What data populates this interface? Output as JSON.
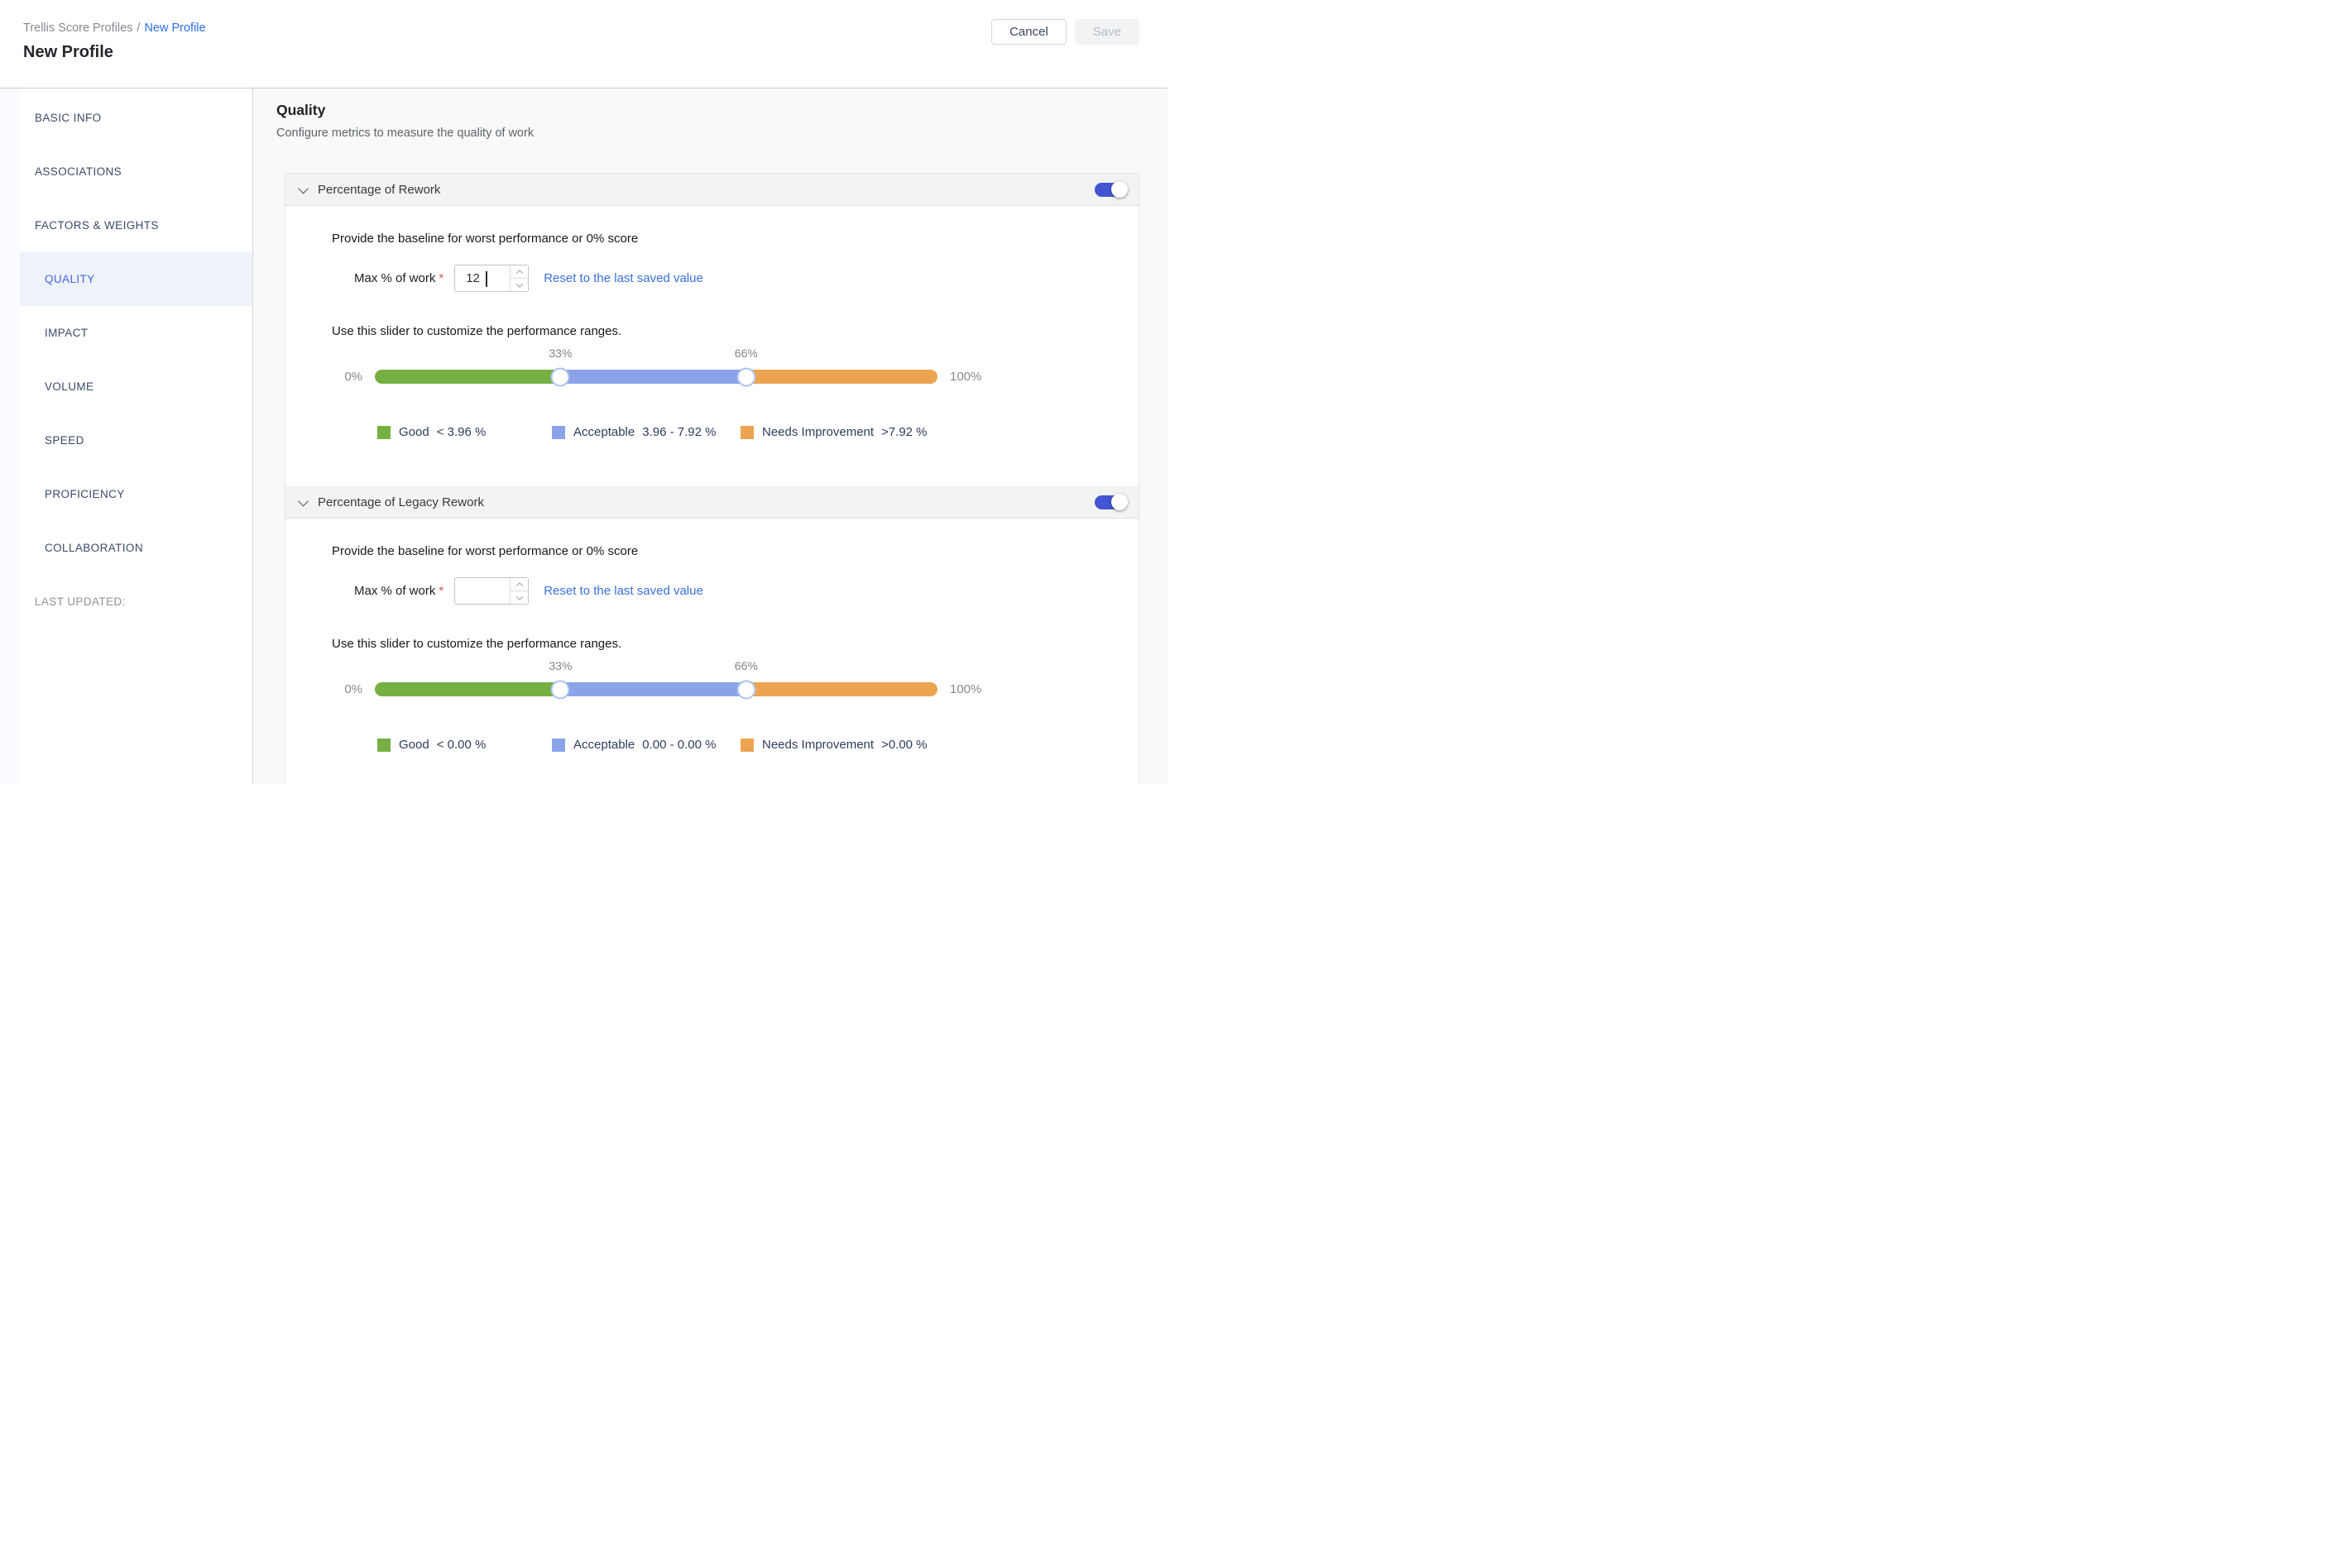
{
  "page": {
    "breadcrumb": {
      "root": "Trellis Score Profiles",
      "separator": "/",
      "current": "New Profile"
    },
    "title": "New Profile",
    "actions": {
      "cancel": "Cancel",
      "save": "Save"
    }
  },
  "sidebar": {
    "items": [
      {
        "label": "BASIC INFO",
        "level": 0,
        "active": false
      },
      {
        "label": "ASSOCIATIONS",
        "level": 0,
        "active": false
      },
      {
        "label": "FACTORS & WEIGHTS",
        "level": 0,
        "active": false
      },
      {
        "label": "QUALITY",
        "level": 1,
        "active": true
      },
      {
        "label": "IMPACT",
        "level": 1,
        "active": false
      },
      {
        "label": "VOLUME",
        "level": 1,
        "active": false
      },
      {
        "label": "SPEED",
        "level": 1,
        "active": false
      },
      {
        "label": "PROFICIENCY",
        "level": 1,
        "active": false
      },
      {
        "label": "COLLABORATION",
        "level": 1,
        "active": false
      }
    ],
    "footer_label": "LAST UPDATED:"
  },
  "main": {
    "heading": "Quality",
    "subheading": "Configure metrics to measure the quality of work",
    "sections": [
      {
        "title": "Percentage of Rework",
        "enabled": true,
        "baseline_text": "Provide the baseline for worst performance or 0% score",
        "field_label": "Max % of work",
        "required_marker": "*",
        "field_value": "12",
        "reset_link": "Reset to the last saved value",
        "slider_text": "Use this slider to customize the performance ranges.",
        "slider": {
          "min_label": "0%",
          "low_label": "33%",
          "high_label": "66%",
          "max_label": "100%",
          "low_pct": 33,
          "high_pct": 66
        },
        "legend": [
          {
            "name": "Good",
            "range": "< 3.96 %",
            "color": "#76b043"
          },
          {
            "name": "Acceptable",
            "range": "3.96 - 7.92 %",
            "color": "#8ba3e8"
          },
          {
            "name": "Needs Improvement",
            "range": ">7.92 %",
            "color": "#eca451"
          }
        ]
      },
      {
        "title": "Percentage of Legacy Rework",
        "enabled": true,
        "baseline_text": "Provide the baseline for worst performance or 0% score",
        "field_label": "Max % of work",
        "required_marker": "*",
        "field_value": "",
        "reset_link": "Reset to the last saved value",
        "slider_text": "Use this slider to customize the performance ranges.",
        "slider": {
          "min_label": "0%",
          "low_label": "33%",
          "high_label": "66%",
          "max_label": "100%",
          "low_pct": 33,
          "high_pct": 66
        },
        "legend": [
          {
            "name": "Good",
            "range": "< 0.00 %",
            "color": "#76b043"
          },
          {
            "name": "Acceptable",
            "range": "0.00 - 0.00 %",
            "color": "#8ba3e8"
          },
          {
            "name": "Needs Improvement",
            "range": ">0.00 %",
            "color": "#eca451"
          }
        ]
      }
    ]
  },
  "colors": {
    "toggle_on": "#4355d2",
    "active_nav": "#4862dd",
    "link": "#3a70dd",
    "slider_good": "#76b043",
    "slider_acceptable": "#8ba3e8",
    "slider_needs_improvement": "#eca451"
  }
}
